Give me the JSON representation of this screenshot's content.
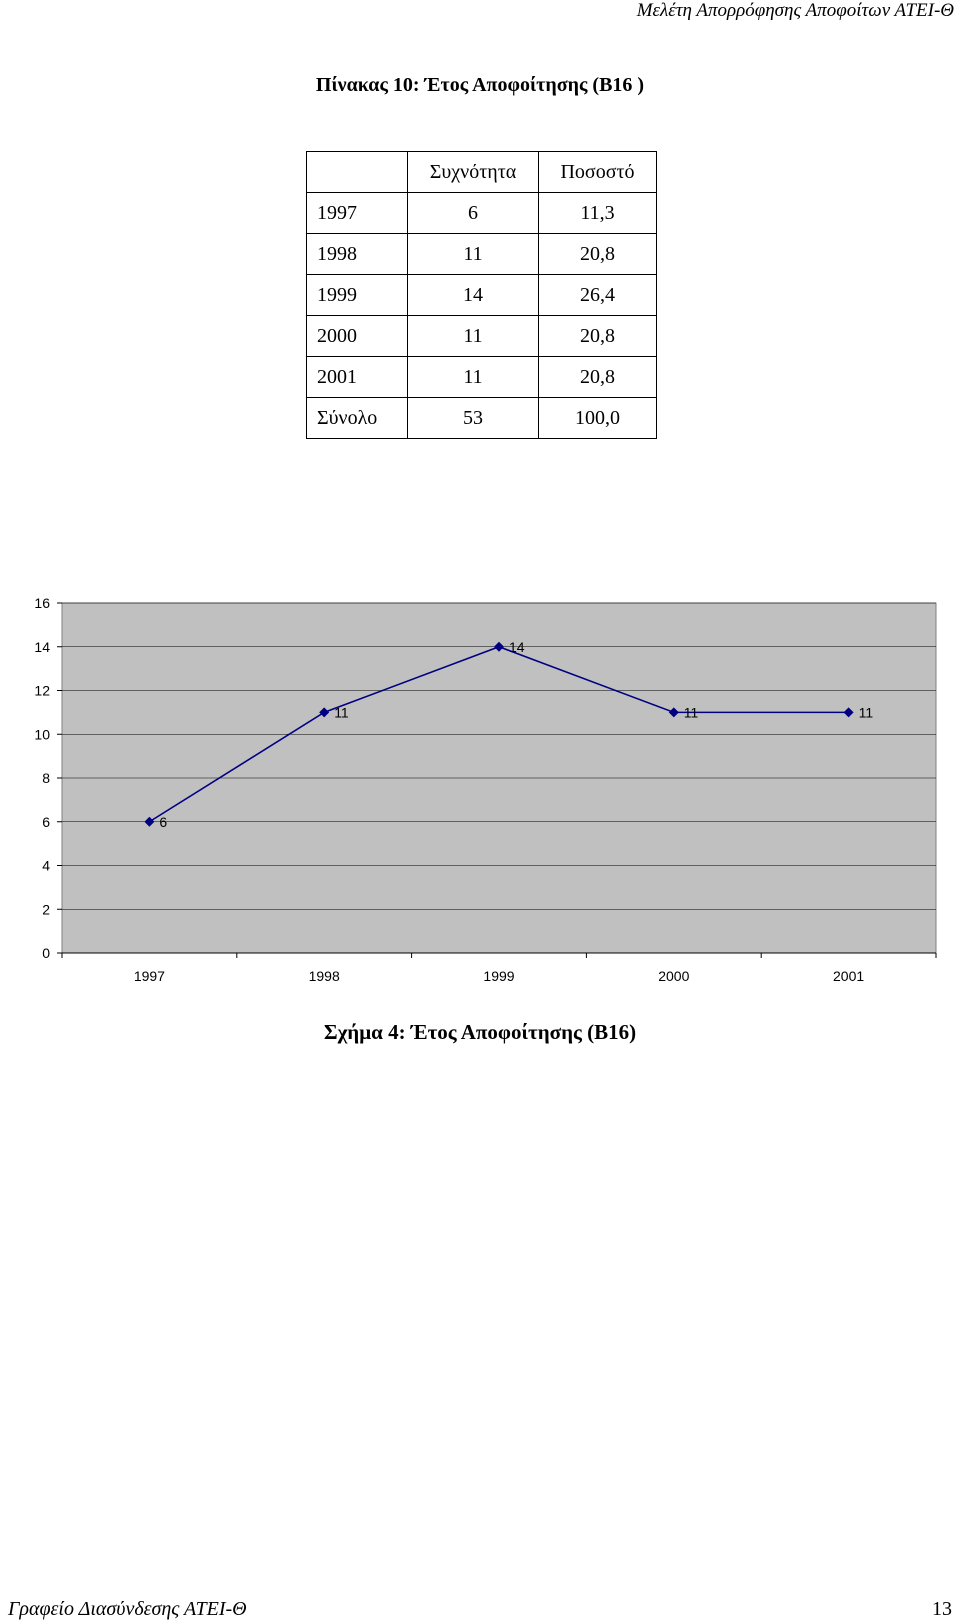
{
  "header": {
    "running_title": "Μελέτη Απορρόφησης Αποφοίτων ΑΤΕΙ-Θ"
  },
  "table": {
    "title": "Πίνακας 10: Έτος Αποφοίτησης (Β16 )",
    "columns": [
      "",
      "Συχνότητα",
      "Ποσοστό"
    ],
    "rows": [
      [
        "1997",
        "6",
        "11,3"
      ],
      [
        "1998",
        "11",
        "20,8"
      ],
      [
        "1999",
        "14",
        "26,4"
      ],
      [
        "2000",
        "11",
        "20,8"
      ],
      [
        "2001",
        "11",
        "20,8"
      ],
      [
        "Σύνολο",
        "53",
        "100,0"
      ]
    ]
  },
  "chart_data": {
    "type": "line",
    "title": "",
    "xlabel": "",
    "ylabel": "",
    "categories": [
      "1997",
      "1998",
      "1999",
      "2000",
      "2001"
    ],
    "series": [
      {
        "values": [
          6,
          11,
          14,
          11,
          11
        ]
      }
    ],
    "ylim": [
      0,
      16
    ],
    "yticks": [
      0,
      2,
      4,
      6,
      8,
      10,
      12,
      14,
      16
    ],
    "grid": true,
    "data_labels": true,
    "colors": {
      "plot_background": "#c0c0c0",
      "line": "#000080",
      "marker": "#000080",
      "gridline": "#000000"
    }
  },
  "figure": {
    "caption": "Σχήμα 4: Έτος Αποφοίτησης (Β16)"
  },
  "footer": {
    "office": "Γραφείο Διασύνδεσης ΑΤΕΙ-Θ",
    "page_number": "13"
  }
}
